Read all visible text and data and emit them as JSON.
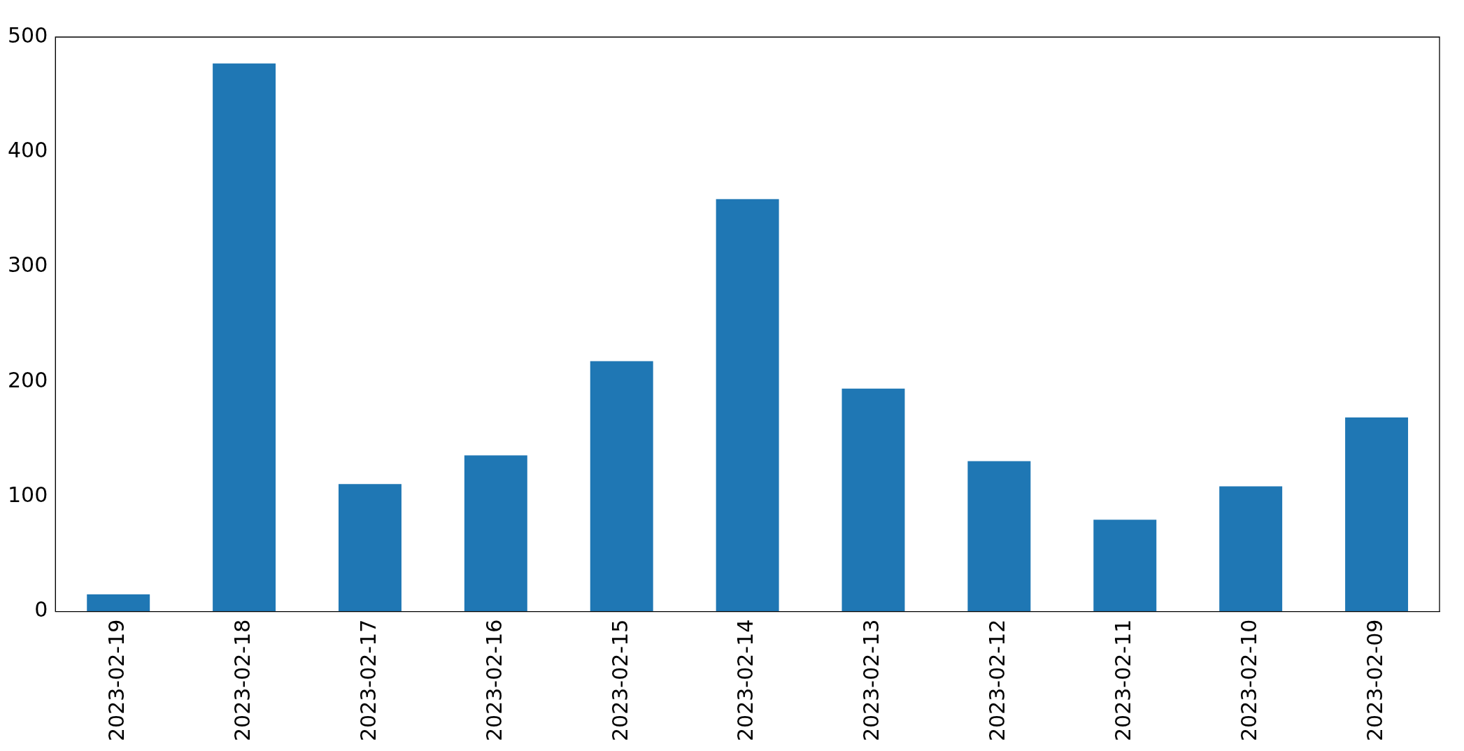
{
  "chart_data": {
    "type": "bar",
    "categories": [
      "2023-02-19",
      "2023-02-18",
      "2023-02-17",
      "2023-02-16",
      "2023-02-15",
      "2023-02-14",
      "2023-02-13",
      "2023-02-12",
      "2023-02-11",
      "2023-02-10",
      "2023-02-09"
    ],
    "values": [
      15,
      477,
      111,
      136,
      218,
      359,
      194,
      131,
      80,
      109,
      169
    ],
    "color": "#1f77b4",
    "ylim": [
      0,
      500
    ],
    "yticks": [
      0,
      100,
      200,
      300,
      400,
      500
    ],
    "grid": false,
    "legend": false
  }
}
